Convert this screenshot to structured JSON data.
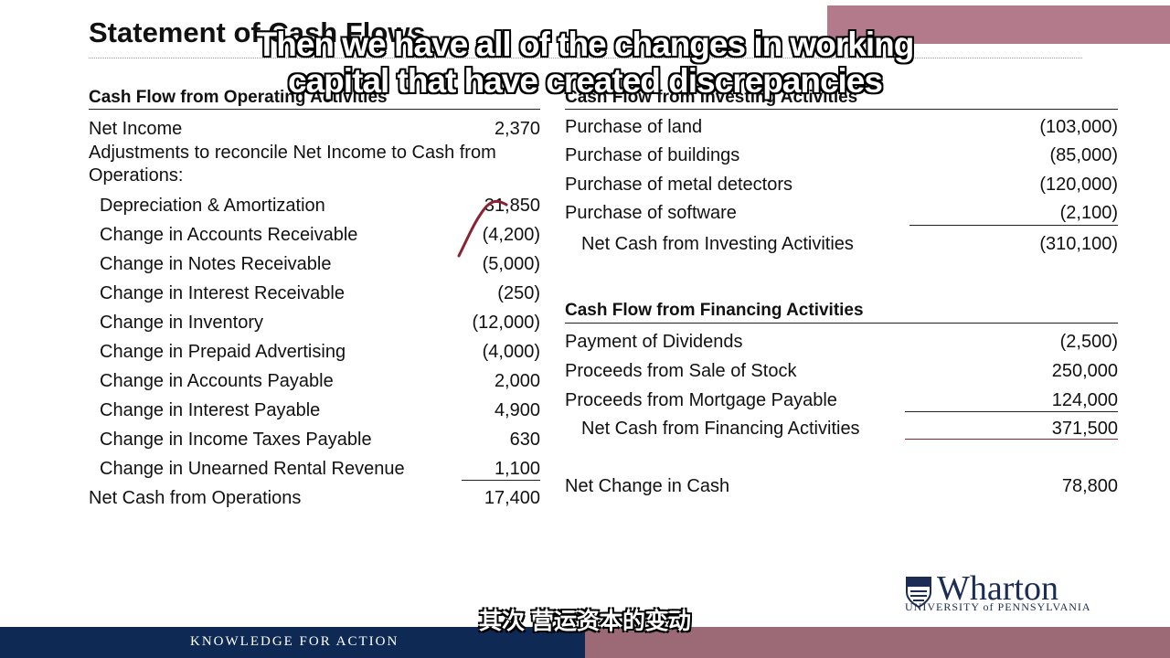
{
  "title": "Statement of Cash Flows",
  "subtitles": {
    "english_line1": "Then we have all of the changes in working",
    "english_line2": "capital that have created discrepancies",
    "chinese": "其次 营运资本的变动"
  },
  "operating": {
    "heading": "Cash Flow from Operating Activities",
    "net_income_label": "Net Income",
    "net_income_value": "2,370",
    "adjustments_label_1": "Adjustments to reconcile Net Income to Cash from",
    "adjustments_label_2": "Operations:",
    "rows": [
      {
        "label": "Depreciation & Amortization",
        "value": "31,850"
      },
      {
        "label": "Change in Accounts Receivable",
        "value": "(4,200)"
      },
      {
        "label": "Change in Notes Receivable",
        "value": "(5,000)"
      },
      {
        "label": "Change in Interest Receivable",
        "value": "(250)"
      },
      {
        "label": "Change in Inventory",
        "value": "(12,000)"
      },
      {
        "label": "Change in Prepaid Advertising",
        "value": "(4,000)"
      },
      {
        "label": "Change in Accounts Payable",
        "value": "2,000"
      },
      {
        "label": "Change in Interest Payable",
        "value": "4,900"
      },
      {
        "label": "Change in Income Taxes Payable",
        "value": "630"
      },
      {
        "label": "Change in Unearned Rental Revenue",
        "value": "1,100"
      }
    ],
    "total_label": "Net Cash from Operations",
    "total_value": "17,400"
  },
  "investing": {
    "heading": "Cash Flow from Investing Activities",
    "rows": [
      {
        "label": "Purchase of land",
        "value": "(103,000)"
      },
      {
        "label": "Purchase of buildings",
        "value": "(85,000)"
      },
      {
        "label": "Purchase of metal detectors",
        "value": "(120,000)"
      },
      {
        "label": "Purchase of software",
        "value": "(2,100)"
      }
    ],
    "total_label": "Net Cash from Investing Activities",
    "total_value": "(310,100)"
  },
  "financing": {
    "heading": "Cash Flow from Financing Activities",
    "rows": [
      {
        "label": "Payment of Dividends",
        "value": "(2,500)"
      },
      {
        "label": "Proceeds from Sale of Stock",
        "value": "250,000"
      },
      {
        "label": "Proceeds from Mortgage Payable",
        "value": "124,000"
      }
    ],
    "total_label": "Net Cash from Financing Activities",
    "total_value": "371,500"
  },
  "net_change": {
    "label": "Net Change in Cash",
    "value": "78,800"
  },
  "footer": {
    "tagline": "KNOWLEDGE FOR ACTION",
    "logo_word": "Wharton",
    "logo_university": "UNIVERSITY of PENNSYLVANIA"
  },
  "colors": {
    "footer_navy": "#0e2954",
    "footer_mauve": "#9b6a76",
    "corner_block": "#b27a8a",
    "logo_blue": "#1d2c55"
  }
}
